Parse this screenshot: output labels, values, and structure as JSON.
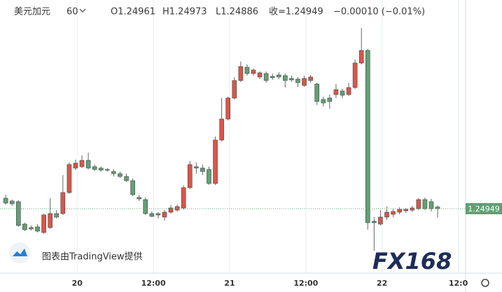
{
  "chart_data": {
    "type": "candlestick",
    "title": "美元加元",
    "interval": "60",
    "header": {
      "open_label": "O1.24961",
      "high_label": "H1.24973",
      "low_label": "L1.24886",
      "close_label": "收=1.24949",
      "change_label": "−0.00010 (−0.01%)"
    },
    "last_price": 1.24949,
    "attribution": "图表由TradingView提供",
    "watermark": "FX168",
    "up_color": "#d9564a",
    "down_color": "#62a074",
    "grid": true,
    "xlim": [
      -0.9,
      72.4
    ],
    "ylim": [
      1.24489,
      1.26439
    ],
    "xticks": [
      {
        "value": 11.25,
        "label": "20"
      },
      {
        "value": 23.25,
        "label": "12:00"
      },
      {
        "value": 35.25,
        "label": "21"
      },
      {
        "value": 47.25,
        "label": "12:00"
      },
      {
        "value": 59.25,
        "label": "22"
      },
      {
        "value": 71.25,
        "label": "12:0"
      }
    ],
    "open": [
      1.25024,
      1.25004,
      1.24999,
      1.24839,
      1.24814,
      1.24819,
      1.24779,
      1.24814,
      1.24914,
      1.24914,
      1.25064,
      1.25239,
      1.25249,
      1.25294,
      1.25249,
      1.25239,
      1.25229,
      1.25214,
      1.25199,
      1.25179,
      1.25149,
      1.25029,
      1.25014,
      1.24914,
      1.24914,
      1.24889,
      1.24924,
      1.24939,
      1.24954,
      1.25099,
      1.25249,
      1.25239,
      1.25229,
      1.25129,
      1.25439,
      1.25589,
      1.25739,
      1.25864,
      1.25959,
      1.25914,
      1.25889,
      1.25914,
      1.25894,
      1.25904,
      1.25899,
      1.25879,
      1.25874,
      1.25829,
      1.25864,
      1.25839,
      1.25729,
      1.25739,
      1.25764,
      1.25789,
      1.25764,
      1.25814,
      1.25989,
      1.26079,
      1.24859,
      1.24839,
      1.24889,
      1.24909,
      1.24924,
      1.24934,
      1.24939,
      1.24949,
      1.25014,
      1.24999,
      1.24961
    ],
    "high": [
      1.25049,
      1.25014,
      1.25009,
      1.24849,
      1.24829,
      1.24839,
      1.24914,
      1.25024,
      1.24939,
      1.25189,
      1.25279,
      1.25299,
      1.25329,
      1.25349,
      1.25264,
      1.25249,
      1.25239,
      1.25229,
      1.25214,
      1.25199,
      1.25164,
      1.25049,
      1.25029,
      1.24929,
      1.24924,
      1.24939,
      1.24974,
      1.24979,
      1.25114,
      1.25289,
      1.25279,
      1.25264,
      1.25249,
      1.25464,
      1.25739,
      1.25749,
      1.25889,
      1.25999,
      1.25979,
      1.25949,
      1.25929,
      1.25929,
      1.25914,
      1.25924,
      1.25914,
      1.25899,
      1.25889,
      1.25899,
      1.25904,
      1.25849,
      1.25749,
      1.25764,
      1.25839,
      1.25804,
      1.25849,
      1.26014,
      1.26239,
      1.26089,
      1.24889,
      1.24939,
      1.24964,
      1.24949,
      1.24959,
      1.24954,
      1.24969,
      1.25024,
      1.25029,
      1.25019,
      1.24973
    ],
    "low": [
      1.24979,
      1.24969,
      1.24819,
      1.24789,
      1.24794,
      1.24779,
      1.24769,
      1.24804,
      1.24879,
      1.24904,
      1.25054,
      1.25224,
      1.25239,
      1.25229,
      1.25219,
      1.25214,
      1.25214,
      1.25179,
      1.25169,
      1.25139,
      1.25039,
      1.25004,
      1.24904,
      1.24889,
      1.24879,
      1.24864,
      1.24914,
      1.24929,
      1.24944,
      1.25089,
      1.25199,
      1.25189,
      1.25119,
      1.25119,
      1.25429,
      1.25579,
      1.25729,
      1.25854,
      1.25899,
      1.25899,
      1.25874,
      1.25849,
      1.25869,
      1.25874,
      1.25814,
      1.25854,
      1.25819,
      1.25819,
      1.25849,
      1.25689,
      1.25679,
      1.25664,
      1.25739,
      1.25739,
      1.25754,
      1.25804,
      1.25979,
      1.24799,
      1.24649,
      1.24829,
      1.24869,
      1.24889,
      1.24909,
      1.24919,
      1.24924,
      1.24939,
      1.24939,
      1.24929,
      1.24886
    ],
    "close": [
      1.24989,
      1.24984,
      1.24829,
      1.24799,
      1.24804,
      1.24789,
      1.24904,
      1.24914,
      1.24889,
      1.25064,
      1.25264,
      1.25274,
      1.25294,
      1.25239,
      1.25229,
      1.25224,
      1.25224,
      1.25199,
      1.25179,
      1.25149,
      1.25049,
      1.25019,
      1.24914,
      1.24894,
      1.24904,
      1.24924,
      1.24954,
      1.24964,
      1.25099,
      1.25264,
      1.25239,
      1.25214,
      1.25129,
      1.25439,
      1.25589,
      1.25739,
      1.25864,
      1.25964,
      1.25914,
      1.25939,
      1.25919,
      1.25864,
      1.25884,
      1.25889,
      1.25864,
      1.25869,
      1.25849,
      1.25879,
      1.25889,
      1.25714,
      1.25704,
      1.25714,
      1.25799,
      1.25759,
      1.25814,
      1.25989,
      1.26079,
      1.24849,
      1.24849,
      1.24889,
      1.24924,
      1.24929,
      1.24944,
      1.24944,
      1.24954,
      1.25014,
      1.24949,
      1.24949,
      1.24949
    ]
  }
}
